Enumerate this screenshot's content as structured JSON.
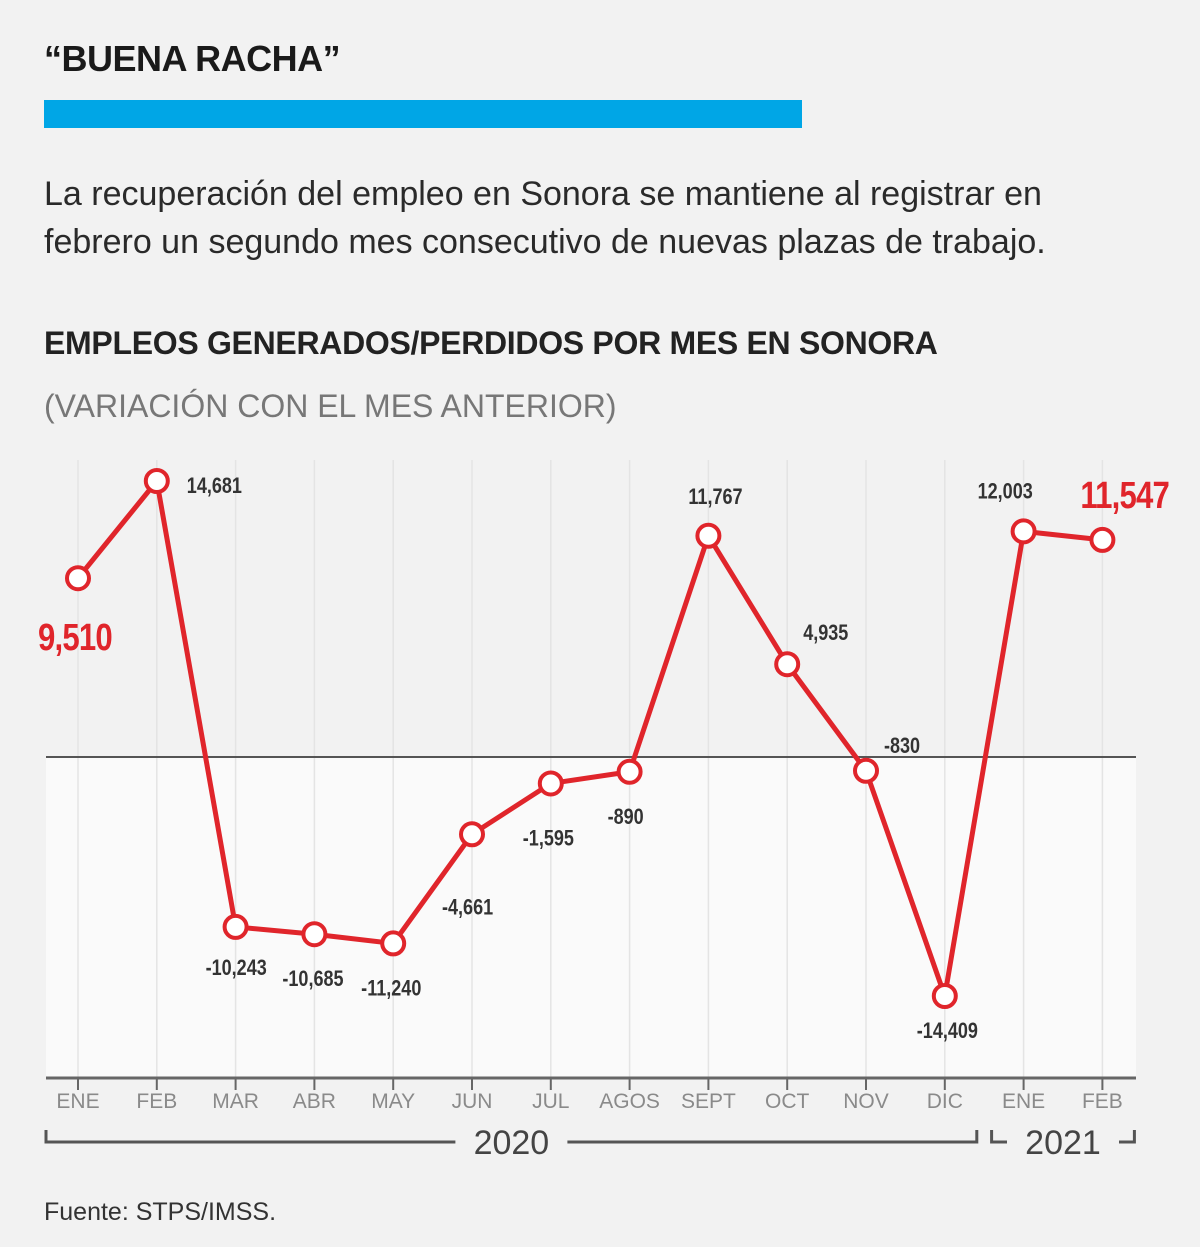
{
  "header": {
    "kicker": "“BUENA RACHA”",
    "dek": "La recuperación del empleo en Sonora se mantiene al registrar en febrero un segundo mes consecutivo de nuevas plazas de trabajo.",
    "accent_color": "#00a6e6"
  },
  "chart_data": {
    "type": "line",
    "title": "EMPLEOS GENERADOS/PERDIDOS POR MES EN SONORA",
    "subtitle": "(VARIACIÓN CON EL MES ANTERIOR)",
    "categories": [
      "ENE",
      "FEB",
      "MAR",
      "ABR",
      "MAY",
      "JUN",
      "JUL",
      "AGOS",
      "SEPT",
      "OCT",
      "NOV",
      "DIC",
      "ENE",
      "FEB"
    ],
    "values": [
      9510,
      14681,
      -10243,
      -10685,
      -11240,
      -4661,
      -1595,
      -890,
      11767,
      4935,
      -830,
      -14409,
      12003,
      11547
    ],
    "labels": [
      "9,510",
      "14,681",
      "-10,243",
      "-10,685",
      "-11,240",
      "-4,661",
      "-1,595",
      "-890",
      "11,767",
      "4,935",
      "-830",
      "-14,409",
      "12,003",
      "11,547"
    ],
    "highlighted_points": [
      0,
      13
    ],
    "year_groups": [
      {
        "label": "2020",
        "from": 0,
        "to": 11
      },
      {
        "label": "2021",
        "from": 12,
        "to": 13
      }
    ],
    "ylim": [
      -18000,
      16000
    ],
    "line_color": "#e0252b",
    "highlight_color": "#e0252b",
    "zero_line": true,
    "grid": true
  },
  "footer": {
    "source": "Fuente: STPS/IMSS."
  }
}
